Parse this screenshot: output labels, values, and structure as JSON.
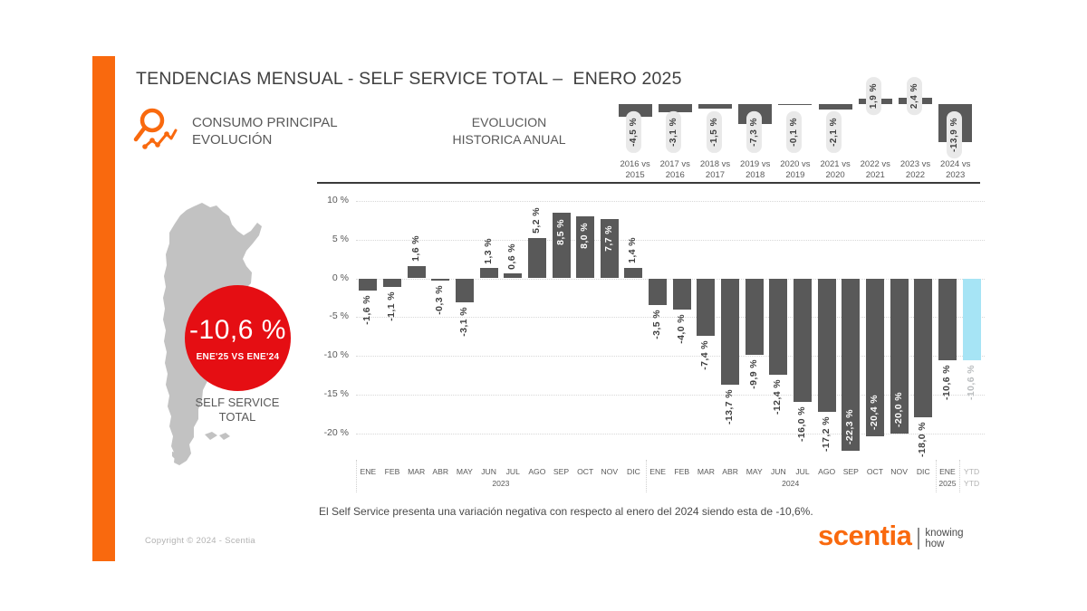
{
  "header": {
    "title": "TENDENCIAS MENSUAL - SELF SERVICE TOTAL –  ENERO 2025",
    "section": {
      "line1": "CONSUMO PRINCIPAL",
      "line2": "EVOLUCIÓN"
    },
    "annual_title": {
      "line1": "EVOLUCION",
      "line2": "HISTORICA ANUAL"
    }
  },
  "map_panel": {
    "badge": {
      "value": "-10,6 %",
      "caption": "ENE'25 VS ENE'24"
    },
    "label": {
      "line1": "SELF SERVICE",
      "line2": "TOTAL"
    }
  },
  "chart_data": [
    {
      "type": "bar",
      "name": "evolucion-historica-anual",
      "title": "EVOLUCION HISTORICA ANUAL",
      "categories": [
        "2016 vs 2015",
        "2017 vs 2016",
        "2018 vs 2017",
        "2019 vs 2018",
        "2020 vs 2019",
        "2021 vs 2020",
        "2022 vs 2021",
        "2023 vs 2022",
        "2024 vs 2023"
      ],
      "values": [
        -4.5,
        -3.1,
        -1.5,
        -7.3,
        -0.1,
        -2.1,
        1.9,
        2.4,
        -13.9
      ],
      "labels": [
        "-4,5 %",
        "-3,1 %",
        "-1,5 %",
        "-7,3 %",
        "-0,1 %",
        "-2,1 %",
        "1,9 %",
        "2,4 %",
        "-13,9 %"
      ],
      "unit": "%",
      "legend": "none",
      "grid": false
    },
    {
      "type": "bar",
      "name": "tendencia-mensual-self-service",
      "title": "TENDENCIAS MENSUAL - SELF SERVICE TOTAL",
      "categories": [
        "ENE",
        "FEB",
        "MAR",
        "ABR",
        "MAY",
        "JUN",
        "JUL",
        "AGO",
        "SEP",
        "OCT",
        "NOV",
        "DIC",
        "ENE",
        "FEB",
        "MAR",
        "ABR",
        "MAY",
        "JUN",
        "JUL",
        "AGO",
        "SEP",
        "OCT",
        "NOV",
        "DIC",
        "ENE",
        "YTD"
      ],
      "values": [
        -1.6,
        -1.1,
        1.6,
        -0.3,
        -3.1,
        1.3,
        0.6,
        5.2,
        8.5,
        8.0,
        7.7,
        1.4,
        -3.5,
        -4.0,
        -7.4,
        -13.7,
        -9.9,
        -12.4,
        -16.0,
        -17.2,
        -22.3,
        -20.4,
        -20.0,
        -18.0,
        -10.6,
        -10.6
      ],
      "labels": [
        "-1,6 %",
        "-1,1 %",
        "1,6 %",
        "-0,3 %",
        "-3,1 %",
        "1,3 %",
        "0,6 %",
        "5,2 %",
        "8,5 %",
        "8,0 %",
        "7,7 %",
        "1,4 %",
        "-3,5 %",
        "-4,0 %",
        "-7,4 %",
        "-13,7 %",
        "-9,9 %",
        "-12,4 %",
        "-16,0 %",
        "-17,2 %",
        "-22,3 %",
        "-20,4 %",
        "-20,0 %",
        "-18,0 %",
        "-10,6 %",
        "-10,6 %"
      ],
      "group_labels": [
        {
          "text": "2023",
          "slot": 6
        },
        {
          "text": "2024",
          "slot": 18
        },
        {
          "text": "2025",
          "slot": 24.5
        },
        {
          "text": "YTD",
          "slot": 25.5
        }
      ],
      "inside_label_indexes": [
        8,
        9,
        10,
        20,
        21,
        22
      ],
      "highlight_index": 25,
      "ytick_labels": [
        "10 %",
        "5 %",
        "0 %",
        "-5 %",
        "-10 %",
        "-15 %",
        "-20 %"
      ],
      "ytick_values": [
        10,
        5,
        0,
        -5,
        -10,
        -15,
        -20
      ],
      "ylim": [
        -25,
        10
      ],
      "grid": "horizontal-dotted",
      "unit": "%",
      "legend": "none"
    }
  ],
  "footer": {
    "note": "El Self Service presenta una variación negativa con respecto al enero del 2024 siendo esta de -10,6%.",
    "copyright": "Copyright © 2024 - Scentia",
    "brand": {
      "name": "scentia",
      "tagline_line1": "knowing",
      "tagline_line2": "how"
    }
  },
  "colors": {
    "orange": "#F9690E",
    "bar_dark": "#595959",
    "bar_highlight": "#A6E4F5",
    "badge_red": "#E50E13",
    "map_gray": "#C2C2C2",
    "text_dark": "#3F3F3F",
    "text_gray": "#595959",
    "text_light": "#B2B2B2"
  }
}
